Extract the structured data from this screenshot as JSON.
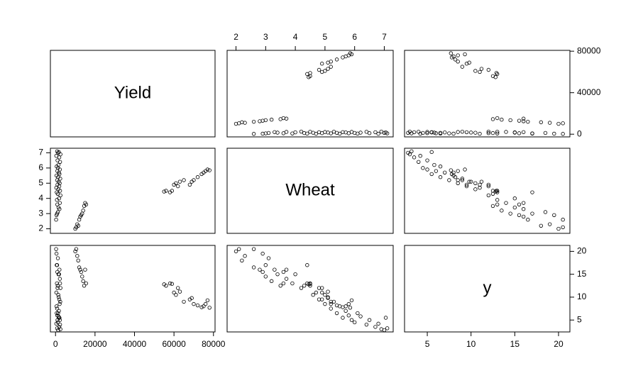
{
  "chart_data": {
    "type": "pairs",
    "point_color": "#000000",
    "variables": [
      {
        "name": "Yield",
        "lim": [
          -2600,
          80800
        ],
        "xticks": [
          0,
          20000,
          40000,
          60000,
          80000
        ],
        "yticks": [
          0,
          40000,
          80000
        ],
        "values": [
          55000,
          56000,
          58000,
          59000,
          60000,
          61000,
          62000,
          63000,
          65000,
          68000,
          69000,
          70000,
          72000,
          74000,
          75000,
          76000,
          77000,
          78000,
          10000,
          10500,
          11000,
          11500,
          12000,
          12500,
          13000,
          13500,
          14000,
          14500,
          15000,
          15500,
          300,
          500,
          800,
          1200,
          2000,
          1500,
          900,
          2200,
          700,
          1800,
          2500,
          1100,
          600,
          2300,
          1400,
          400,
          1900,
          1000,
          2100,
          1600,
          800,
          2400,
          1300,
          500,
          2000,
          1700,
          900,
          2200,
          1200,
          600,
          1500,
          2300,
          1000,
          1900,
          400,
          2500,
          1300,
          800,
          1700
        ]
      },
      {
        "name": "Wheat",
        "lim": [
          1.7,
          7.3
        ],
        "xticks": [
          2,
          3,
          4,
          5,
          6,
          7
        ],
        "yticks": [
          2,
          3,
          4,
          5,
          6,
          7
        ],
        "values": [
          4.45,
          4.5,
          4.4,
          4.5,
          4.9,
          5.0,
          4.8,
          5.1,
          5.2,
          4.9,
          5.1,
          5.2,
          5.4,
          5.6,
          5.7,
          5.8,
          5.9,
          5.85,
          2.0,
          2.1,
          2.3,
          2.2,
          2.6,
          2.8,
          2.9,
          3.0,
          3.2,
          3.5,
          3.7,
          3.6,
          2.6,
          2.9,
          3.0,
          3.1,
          3.3,
          3.4,
          3.6,
          3.7,
          3.9,
          4.0,
          4.2,
          4.3,
          4.4,
          4.5,
          4.6,
          4.7,
          4.8,
          4.9,
          5.0,
          5.1,
          5.2,
          5.3,
          5.4,
          5.5,
          5.6,
          5.7,
          5.8,
          5.9,
          6.0,
          6.1,
          6.2,
          6.4,
          6.5,
          6.7,
          6.8,
          6.9,
          7.0,
          7.1,
          7.05
        ]
      },
      {
        "name": "y",
        "lim": [
          2.4,
          21.3
        ],
        "xticks": [
          5,
          10,
          15,
          20
        ],
        "yticks": [
          5,
          10,
          15,
          20
        ],
        "values": [
          12.8,
          12.5,
          13,
          12.9,
          11,
          10.5,
          12,
          11.2,
          9,
          9.5,
          9.8,
          8.5,
          8.2,
          7.8,
          8,
          8.5,
          9.3,
          7.7,
          20,
          20.5,
          19,
          18,
          16.5,
          16,
          15.5,
          14.5,
          13.5,
          12.5,
          16,
          13,
          20.5,
          19.5,
          17,
          18.5,
          16,
          15,
          15.5,
          14,
          13,
          15,
          12,
          12.5,
          17,
          13,
          10.5,
          11,
          9.5,
          12,
          8.5,
          10,
          7.5,
          9,
          6.5,
          8,
          5.5,
          7,
          6,
          5,
          4.5,
          6.5,
          5.8,
          4,
          5,
          3.5,
          4.2,
          3,
          2.8,
          3.2,
          5.5
        ]
      }
    ]
  }
}
